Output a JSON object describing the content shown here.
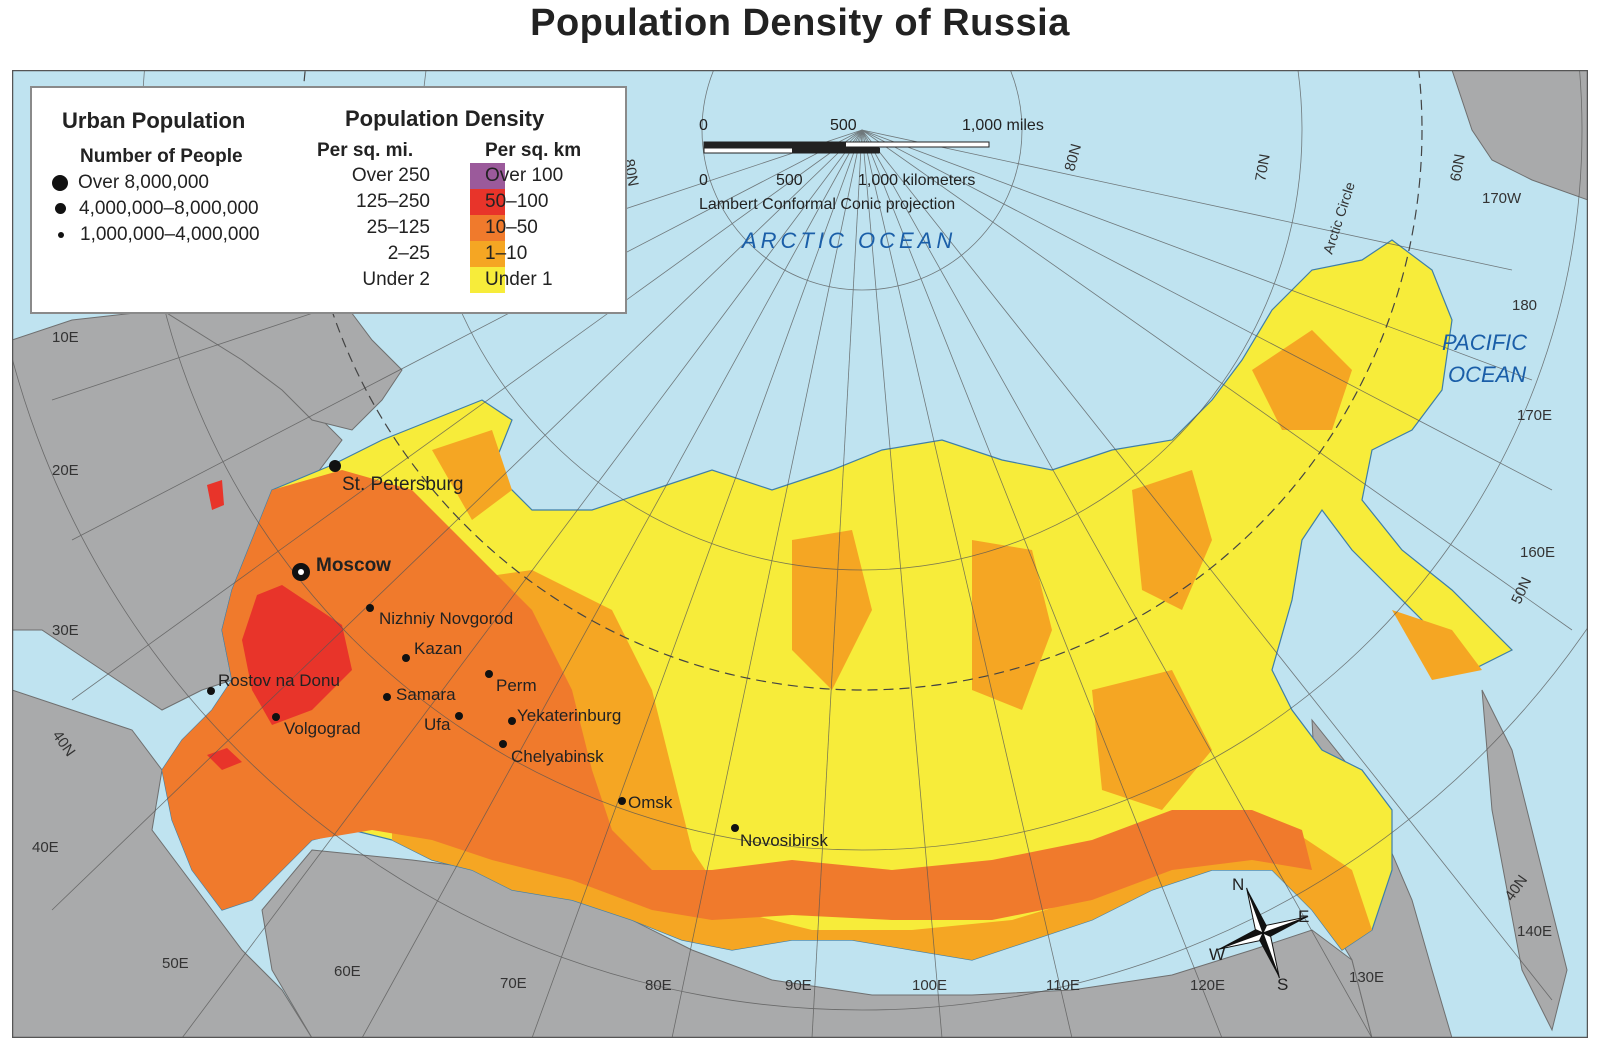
{
  "title": "Population Density of Russia",
  "legend": {
    "urban_heading": "Urban Population",
    "number_heading": "Number of People",
    "urban_items": [
      "Over 8,000,000",
      "4,000,000–8,000,000",
      "1,000,000–4,000,000"
    ],
    "density_heading": "Population Density",
    "per_mi_heading": "Per sq. mi.",
    "per_km_heading": "Per sq. km",
    "classes": [
      {
        "mi": "Over 250",
        "km": "Over 100",
        "color": "#9b5a9b"
      },
      {
        "mi": "125–250",
        "km": "50–100",
        "color": "#e8342a"
      },
      {
        "mi": "25–125",
        "km": "10–50",
        "color": "#f07a2c"
      },
      {
        "mi": "2–25",
        "km": "1–10",
        "color": "#f5a623"
      },
      {
        "mi": "Under 2",
        "km": "Under 1",
        "color": "#f7ec3a"
      }
    ]
  },
  "scale": {
    "mi_labels": [
      "0",
      "500",
      "1,000 miles"
    ],
    "km_labels": [
      "0",
      "500",
      "1,000 kilometers"
    ],
    "projection": "Lambert Conformal Conic projection"
  },
  "oceans": {
    "arctic": "ARCTIC OCEAN",
    "pacific_1": "PACIFIC",
    "pacific_2": "OCEAN"
  },
  "graticule": {
    "arctic_circle": "Arctic Circle",
    "lat_top": [
      "80N",
      "80N",
      "70N",
      "60N"
    ],
    "lon_left": [
      "10E",
      "20E",
      "30E",
      "40E"
    ],
    "lon_bottom": [
      "50E",
      "60E",
      "70E",
      "80E",
      "90E",
      "100E",
      "110E",
      "120E",
      "130E"
    ],
    "lon_right": [
      "170W",
      "180",
      "170E",
      "160E",
      "140E"
    ],
    "lat_right": [
      "50N",
      "40N"
    ],
    "lat_left": [
      "40N"
    ]
  },
  "compass": {
    "n": "N",
    "e": "E",
    "s": "S",
    "w": "W"
  },
  "cities": [
    {
      "name": "Moscow",
      "rank": "large",
      "bold": true
    },
    {
      "name": "St. Petersburg",
      "rank": "medium",
      "bold": false
    },
    {
      "name": "Nizhniy Novgorod",
      "rank": "small",
      "bold": false
    },
    {
      "name": "Kazan",
      "rank": "small",
      "bold": false
    },
    {
      "name": "Rostov na Donu",
      "rank": "small",
      "bold": false
    },
    {
      "name": "Perm",
      "rank": "small",
      "bold": false
    },
    {
      "name": "Samara",
      "rank": "small",
      "bold": false
    },
    {
      "name": "Volgograd",
      "rank": "small",
      "bold": false
    },
    {
      "name": "Ufa",
      "rank": "small",
      "bold": false
    },
    {
      "name": "Yekaterinburg",
      "rank": "small",
      "bold": false
    },
    {
      "name": "Chelyabinsk",
      "rank": "small",
      "bold": false
    },
    {
      "name": "Omsk",
      "rank": "small",
      "bold": false
    },
    {
      "name": "Novosibirsk",
      "rank": "small",
      "bold": false
    }
  ],
  "colors": {
    "water": "#bfe3f0",
    "foreign_land": "#a9aaab",
    "frame": "#555555"
  }
}
